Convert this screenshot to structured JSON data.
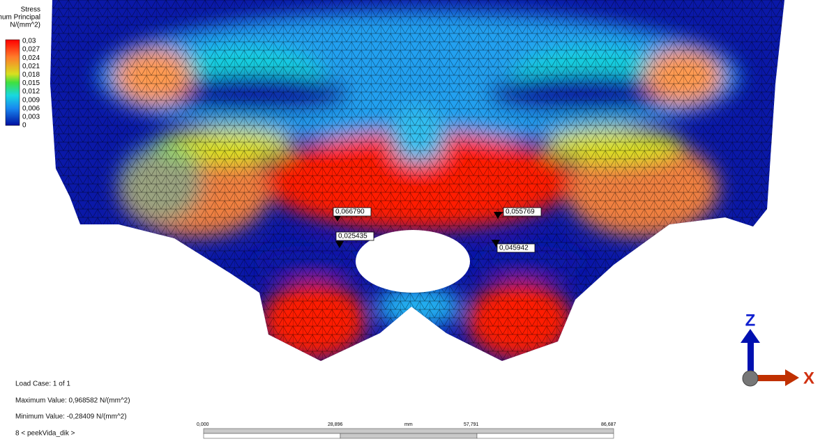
{
  "legend": {
    "title": [
      "Stress",
      "Maximum Principal",
      "N/(mm^2)"
    ],
    "labels": [
      "0,03",
      "0,027",
      "0,024",
      "0,021",
      "0,018",
      "0,015",
      "0,012",
      "0,009",
      "0,006",
      "0,003",
      "0"
    ]
  },
  "probes": [
    "0,066790",
    "0,055769",
    "0,025435",
    "0,045942"
  ],
  "info": [
    "Load Case:  1 of 1",
    "Maximum Value: 0,968582 N/(mm^2)",
    "Minimum Value: -0,28409 N/(mm^2)",
    "8 < peekVida_dik >"
  ],
  "scale": {
    "labels": [
      "0,000",
      "28,896",
      "57,791",
      "86,687"
    ],
    "unit": "mm"
  },
  "triad": {
    "z": "Z",
    "x": "X"
  }
}
